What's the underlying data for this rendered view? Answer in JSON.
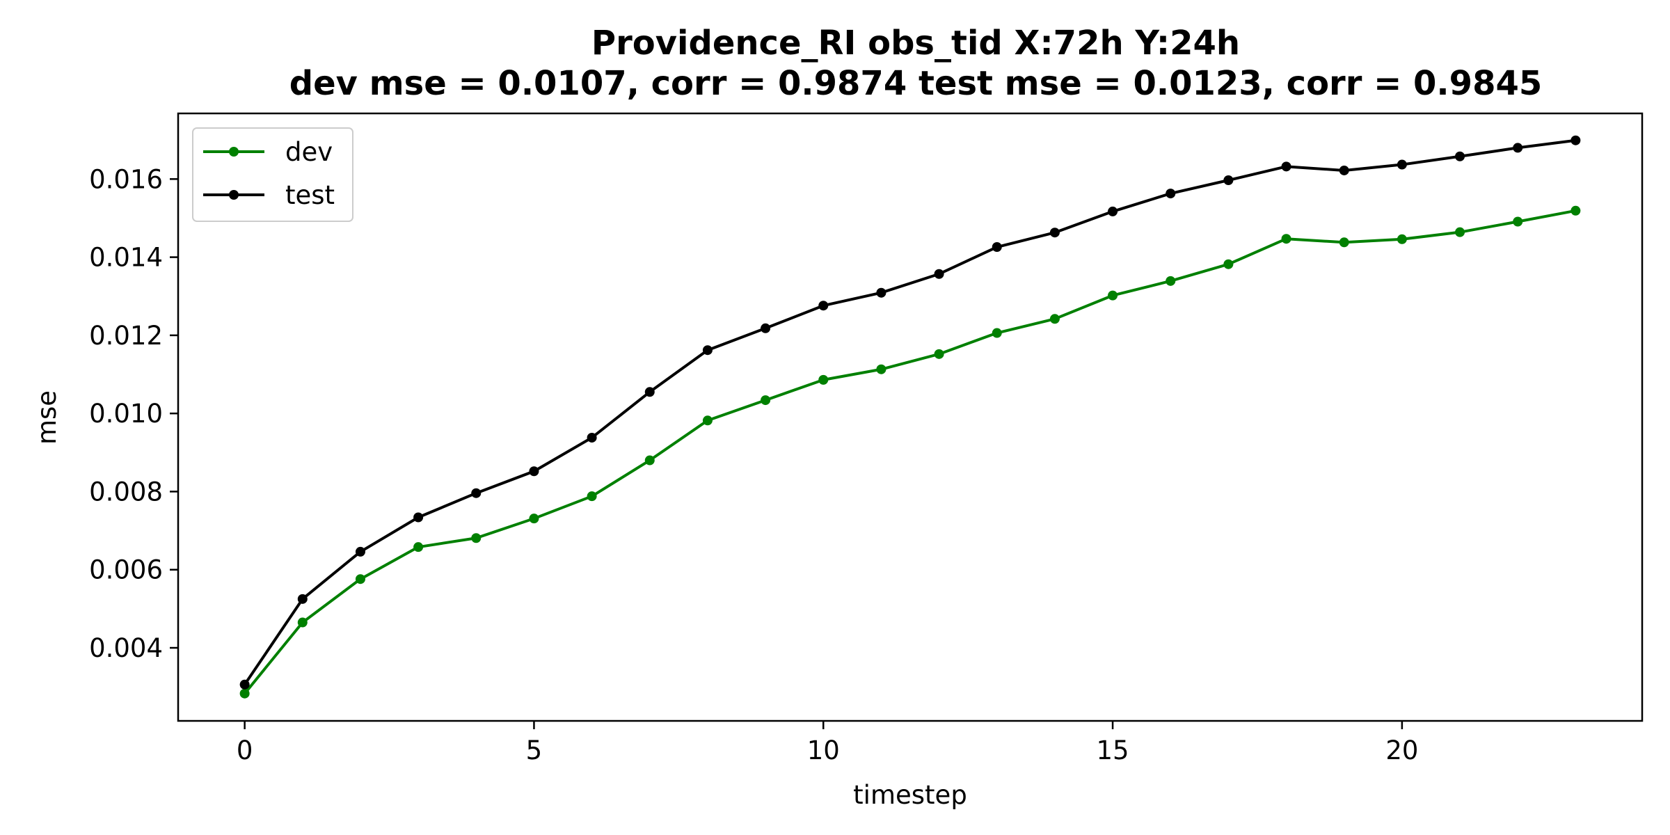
{
  "chart_data": {
    "type": "line",
    "title": "Providence_RI   obs_tid   X:72h   Y:24h",
    "subtitle": "dev mse = 0.0107, corr = 0.9874   test mse = 0.0123, corr = 0.9845",
    "xlabel": "timestep",
    "ylabel": "mse",
    "xlim": [
      -1.15,
      24.15
    ],
    "ylim": [
      0.00213,
      0.01768
    ],
    "xticks": [
      0,
      5,
      10,
      15,
      20
    ],
    "yticks": [
      0.004,
      0.006,
      0.008,
      0.01,
      0.012,
      0.014,
      0.016
    ],
    "ytick_labels": [
      "0.004",
      "0.006",
      "0.008",
      "0.010",
      "0.012",
      "0.014",
      "0.016"
    ],
    "grid": false,
    "legend_position": "top-left",
    "x": [
      0,
      1,
      2,
      3,
      4,
      5,
      6,
      7,
      8,
      9,
      10,
      11,
      12,
      13,
      14,
      15,
      16,
      17,
      18,
      19,
      20,
      21,
      22,
      23
    ],
    "series": [
      {
        "name": "dev",
        "color": "#008000",
        "values": [
          0.00283,
          0.00465,
          0.00576,
          0.00658,
          0.00681,
          0.00731,
          0.00788,
          0.0088,
          0.00982,
          0.01034,
          0.01086,
          0.01113,
          0.01152,
          0.01206,
          0.01242,
          0.01302,
          0.01339,
          0.01382,
          0.01447,
          0.01438,
          0.01446,
          0.01464,
          0.01491,
          0.01519
        ]
      },
      {
        "name": "test",
        "color": "#000000",
        "values": [
          0.00306,
          0.00525,
          0.00646,
          0.00734,
          0.00796,
          0.00852,
          0.00938,
          0.01055,
          0.01162,
          0.01218,
          0.01276,
          0.01309,
          0.01357,
          0.01426,
          0.01463,
          0.01517,
          0.01563,
          0.01597,
          0.01632,
          0.01622,
          0.01637,
          0.01658,
          0.0168,
          0.01699
        ]
      }
    ]
  }
}
